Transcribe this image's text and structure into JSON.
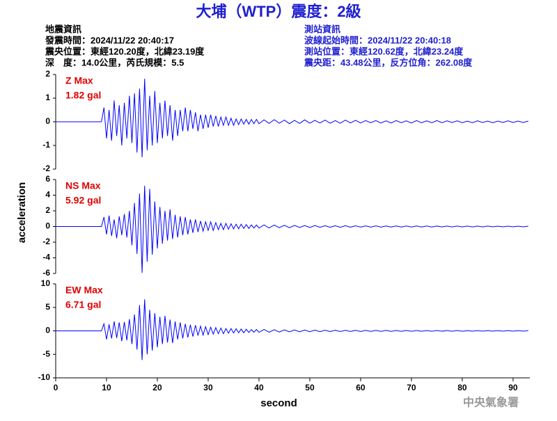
{
  "header": {
    "title": "大埔（WTP）震度：2級",
    "left": [
      "地震資訊",
      "發震時間：2024/11/22 20:40:17",
      "震央位置：東經120.20度，北緯23.19度",
      "深　度：14.0公里，芮氏規模：5.5"
    ],
    "right": [
      "測站資訊",
      "波線起始時間：2024/11/22 20:40:18",
      "測站位置：東經120.62度，北緯23.24度",
      "震央距：43.48公里，反方位角：262.08度"
    ]
  },
  "footer": "中央氣象署",
  "chart_data": [
    {
      "type": "line",
      "xlim": [
        0,
        93.3
      ],
      "ylim": [
        -2,
        2
      ],
      "yticks": [
        -2,
        -1,
        0,
        1,
        2
      ],
      "label_color": "#e00000",
      "x": [
        0,
        9,
        9.5,
        10,
        10.5,
        11,
        11.5,
        12,
        12.5,
        13,
        13.5,
        14,
        14.5,
        15,
        15.5,
        16,
        16.5,
        17,
        17.5,
        18,
        18.5,
        19,
        19.5,
        20,
        20.5,
        21,
        21.5,
        22,
        22.5,
        23,
        23.5,
        24,
        24.5,
        25,
        25.5,
        26,
        26.5,
        27,
        27.5,
        28,
        28.5,
        29,
        29.5,
        30,
        30.5,
        31,
        31.5,
        32,
        32.5,
        33,
        33.5,
        34,
        34.5,
        35,
        35.5,
        36,
        36.5,
        37,
        37.5,
        38,
        38.5,
        39,
        39.5,
        40,
        41,
        42,
        43,
        44,
        45,
        46,
        47,
        48,
        49,
        50,
        51,
        52,
        53,
        54,
        55,
        56,
        57,
        58,
        59,
        60,
        61,
        62,
        63,
        64,
        65,
        66,
        67,
        68,
        69,
        70,
        71,
        72,
        73,
        74,
        75,
        76,
        77,
        78,
        79,
        80,
        81,
        82,
        83,
        84,
        85,
        86,
        87,
        88,
        89,
        90,
        91,
        92,
        93
      ],
      "series": [
        {
          "name": "Z Max",
          "value_label": "1.82 gal",
          "color": "#0000ff",
          "values": [
            0,
            0,
            0.6,
            -0.7,
            0.5,
            -0.8,
            0.9,
            -0.6,
            0.7,
            -1.0,
            0.8,
            -0.7,
            1.1,
            -0.9,
            1.2,
            -1.3,
            1.4,
            -1.5,
            1.82,
            -1.2,
            1.1,
            -1.0,
            1.3,
            -0.9,
            0.8,
            -0.7,
            0.9,
            -0.6,
            0.7,
            -0.8,
            0.5,
            -0.6,
            0.5,
            -0.4,
            0.6,
            -0.4,
            0.5,
            -0.3,
            0.4,
            -0.4,
            0.3,
            -0.3,
            0.3,
            -0.25,
            0.3,
            -0.2,
            0.25,
            -0.2,
            0.2,
            -0.15,
            0.2,
            -0.15,
            0.15,
            -0.15,
            0.12,
            -0.12,
            0.12,
            -0.1,
            0.1,
            -0.1,
            0.1,
            -0.08,
            0.1,
            -0.08,
            0.08,
            -0.07,
            0.09,
            -0.06,
            0.07,
            -0.08,
            0.06,
            -0.07,
            0.08,
            -0.06,
            0.06,
            -0.05,
            0.07,
            -0.06,
            0.05,
            -0.06,
            0.07,
            -0.05,
            0.06,
            -0.05,
            0.05,
            -0.04,
            0.05,
            -0.05,
            0.04,
            -0.05,
            0.05,
            -0.04,
            0.04,
            -0.05,
            0.05,
            -0.04,
            0.04,
            -0.04,
            0.05,
            -0.04,
            0.04,
            -0.03,
            0.04,
            -0.04,
            0.03,
            -0.04,
            0.04,
            -0.03,
            0.03,
            -0.04,
            0.03,
            -0.03,
            0.04,
            -0.03,
            0.03,
            -0.03,
            0.03
          ]
        }
      ]
    },
    {
      "type": "line",
      "xlim": [
        0,
        93.3
      ],
      "ylim": [
        -6,
        6
      ],
      "yticks": [
        -6,
        -4,
        -2,
        0,
        2,
        4,
        6
      ],
      "ylabel": "acceleration",
      "label_color": "#e00000",
      "x": [
        0,
        9,
        9.5,
        10,
        10.5,
        11,
        11.5,
        12,
        12.5,
        13,
        13.5,
        14,
        14.5,
        15,
        15.5,
        16,
        16.5,
        17,
        17.5,
        18,
        18.5,
        19,
        19.5,
        20,
        20.5,
        21,
        21.5,
        22,
        22.5,
        23,
        23.5,
        24,
        24.5,
        25,
        25.5,
        26,
        26.5,
        27,
        27.5,
        28,
        28.5,
        29,
        29.5,
        30,
        30.5,
        31,
        31.5,
        32,
        32.5,
        33,
        33.5,
        34,
        34.5,
        35,
        35.5,
        36,
        36.5,
        37,
        37.5,
        38,
        38.5,
        39,
        39.5,
        40,
        41,
        42,
        43,
        44,
        45,
        46,
        47,
        48,
        49,
        50,
        51,
        52,
        53,
        54,
        55,
        56,
        57,
        58,
        59,
        60,
        61,
        62,
        63,
        64,
        65,
        66,
        67,
        68,
        69,
        70,
        71,
        72,
        73,
        74,
        75,
        76,
        77,
        78,
        79,
        80,
        81,
        82,
        83,
        84,
        85,
        86,
        87,
        88,
        89,
        90,
        91,
        92,
        93
      ],
      "series": [
        {
          "name": "NS Max",
          "value_label": "5.92 gal",
          "color": "#0000ff",
          "values": [
            0,
            0,
            1.2,
            -1.0,
            1.4,
            -1.2,
            0.9,
            -1.5,
            1.3,
            -1.1,
            1.6,
            -1.4,
            2.0,
            -2.4,
            3.0,
            -3.5,
            4.2,
            -5.92,
            5.2,
            -4.5,
            4.8,
            -3.6,
            3.2,
            -2.8,
            2.5,
            -2.2,
            2.0,
            -1.8,
            2.2,
            -1.6,
            1.5,
            -1.4,
            1.3,
            -1.1,
            1.2,
            -1.0,
            0.9,
            -0.8,
            0.9,
            -0.7,
            0.7,
            -0.6,
            0.6,
            -0.5,
            0.6,
            -0.5,
            0.5,
            -0.4,
            0.4,
            -0.4,
            0.4,
            -0.35,
            0.35,
            -0.3,
            0.3,
            -0.3,
            0.3,
            -0.25,
            0.25,
            -0.25,
            0.2,
            -0.2,
            0.2,
            -0.2,
            0.2,
            -0.18,
            0.18,
            -0.15,
            0.15,
            -0.15,
            0.14,
            -0.12,
            0.12,
            -0.12,
            0.12,
            -0.1,
            0.1,
            -0.1,
            0.1,
            -0.1,
            0.1,
            -0.09,
            0.09,
            -0.08,
            0.08,
            -0.08,
            0.08,
            -0.08,
            0.07,
            -0.07,
            0.07,
            -0.07,
            0.07,
            -0.06,
            0.06,
            -0.06,
            0.06,
            -0.06,
            0.06,
            -0.05,
            0.05,
            -0.05,
            0.05,
            -0.05,
            0.05,
            -0.05,
            0.05,
            -0.05,
            0.05,
            -0.04,
            0.04,
            -0.04,
            0.04,
            -0.04,
            0.04,
            -0.04,
            0.04
          ]
        }
      ]
    },
    {
      "type": "line",
      "xlim": [
        0,
        93.3
      ],
      "ylim": [
        -10,
        10
      ],
      "yticks": [
        -10,
        -5,
        0,
        5,
        10
      ],
      "xticks": [
        0,
        10,
        20,
        30,
        40,
        50,
        60,
        70,
        80,
        90
      ],
      "xlabel": "second",
      "label_color": "#e00000",
      "x": [
        0,
        9,
        9.5,
        10,
        10.5,
        11,
        11.5,
        12,
        12.5,
        13,
        13.5,
        14,
        14.5,
        15,
        15.5,
        16,
        16.5,
        17,
        17.5,
        18,
        18.5,
        19,
        19.5,
        20,
        20.5,
        21,
        21.5,
        22,
        22.5,
        23,
        23.5,
        24,
        24.5,
        25,
        25.5,
        26,
        26.5,
        27,
        27.5,
        28,
        28.5,
        29,
        29.5,
        30,
        30.5,
        31,
        31.5,
        32,
        32.5,
        33,
        33.5,
        34,
        34.5,
        35,
        35.5,
        36,
        36.5,
        37,
        37.5,
        38,
        38.5,
        39,
        39.5,
        40,
        41,
        42,
        43,
        44,
        45,
        46,
        47,
        48,
        49,
        50,
        51,
        52,
        53,
        54,
        55,
        56,
        57,
        58,
        59,
        60,
        61,
        62,
        63,
        64,
        65,
        66,
        67,
        68,
        69,
        70,
        71,
        72,
        73,
        74,
        75,
        76,
        77,
        78,
        79,
        80,
        81,
        82,
        83,
        84,
        85,
        86,
        87,
        88,
        89,
        90,
        91,
        92,
        93
      ],
      "series": [
        {
          "name": "EW Max",
          "value_label": "6.71 gal",
          "color": "#0000ff",
          "values": [
            0,
            0,
            1.5,
            -1.8,
            1.4,
            -1.6,
            2.0,
            -1.5,
            1.8,
            -2.2,
            1.9,
            -2.0,
            2.5,
            -2.8,
            3.5,
            -4.0,
            5.5,
            -6.2,
            6.71,
            -5.0,
            4.5,
            -4.2,
            3.8,
            -3.5,
            3.0,
            -2.8,
            3.2,
            -2.5,
            2.4,
            -2.6,
            2.0,
            -1.8,
            1.8,
            -1.6,
            1.5,
            -1.4,
            1.3,
            -1.2,
            1.2,
            -1.0,
            1.0,
            -0.9,
            0.9,
            -0.8,
            0.8,
            -0.7,
            0.7,
            -0.6,
            0.6,
            -0.6,
            0.5,
            -0.5,
            0.5,
            -0.45,
            0.45,
            -0.4,
            0.4,
            -0.4,
            0.35,
            -0.35,
            0.3,
            -0.3,
            0.3,
            -0.3,
            0.3,
            -0.28,
            0.25,
            -0.25,
            0.22,
            -0.2,
            0.2,
            -0.2,
            0.18,
            -0.18,
            0.16,
            -0.16,
            0.15,
            -0.15,
            0.14,
            -0.14,
            0.13,
            -0.12,
            0.12,
            -0.12,
            0.11,
            -0.11,
            0.1,
            -0.1,
            0.1,
            -0.1,
            0.09,
            -0.09,
            0.09,
            -0.09,
            0.08,
            -0.08,
            0.08,
            -0.08,
            0.08,
            -0.07,
            0.07,
            -0.07,
            0.07,
            -0.07,
            0.06,
            -0.06,
            0.06,
            -0.06,
            0.06,
            -0.06,
            0.05,
            -0.05,
            0.05,
            -0.05,
            0.05,
            -0.05,
            0.05
          ]
        }
      ]
    }
  ]
}
